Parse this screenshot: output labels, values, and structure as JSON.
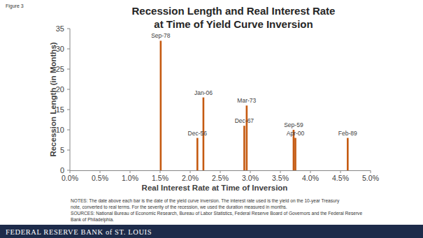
{
  "chart_data": {
    "type": "bar",
    "figure": "Figure 3",
    "title": [
      "Recession Length and Real Interest Rate",
      "at Time of Yield Curve Inversion"
    ],
    "x_label": "Real Interest Rate at Time of Inversion",
    "y_label": "Recession Length (in Months)",
    "x": [
      1.51,
      2.12,
      2.22,
      2.9,
      2.94,
      3.72,
      3.75,
      4.62
    ],
    "values": [
      32,
      8,
      18,
      11,
      16,
      10,
      8,
      8
    ],
    "bar_labels": [
      "Sep-78",
      "Dec-56",
      "Jan-06",
      "Dec-67",
      "Mar-73",
      "Sep-59",
      "Apr-00",
      "Feb-89"
    ],
    "color": "#c55a11",
    "xlim": [
      0,
      5
    ],
    "xticks": [
      {
        "value": 0,
        "label": "0.0%"
      },
      {
        "value": 0.5,
        "label": "0.5%"
      },
      {
        "value": 1,
        "label": "1.0%"
      },
      {
        "value": 1.5,
        "label": "1.5%"
      },
      {
        "value": 2,
        "label": "2.0%"
      },
      {
        "value": 2.5,
        "label": "2.5%"
      },
      {
        "value": 3,
        "label": "3.0%"
      },
      {
        "value": 3.5,
        "label": "3.5%"
      },
      {
        "value": 4,
        "label": "4.0%"
      },
      {
        "value": 4.5,
        "label": "4.5%"
      },
      {
        "value": 5,
        "label": "5.0%"
      }
    ],
    "ylim": [
      0,
      35
    ],
    "yticks": [
      0,
      5,
      10,
      15,
      20,
      25,
      30,
      35
    ],
    "grid": false,
    "notes": [
      "NOTES: The date above each bar is the date of the yield curve inversion. The interest rate used is the yield on the 10-year Treasury",
      "note, converted to real terms. For the severity of the recession, we used the duration measured in months.",
      "SOURCES: National Bureau of Economic Research, Bureau of Labor Statistics, Federal Reserve Board of Governors and the Federal Reserve",
      "Bank of Philadelphia."
    ],
    "footer": "FEDERAL RESERVE BANK of ST. LOUIS"
  }
}
